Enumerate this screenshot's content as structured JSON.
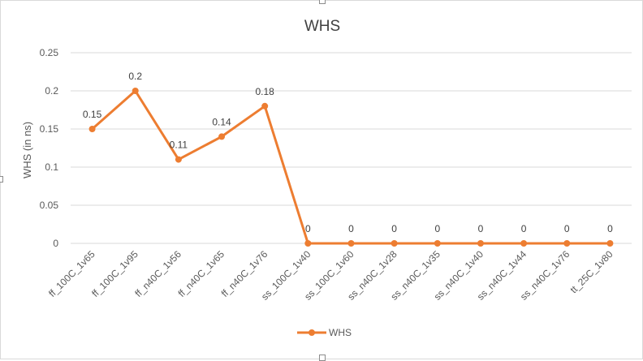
{
  "chart_data": {
    "type": "line",
    "title": "WHS",
    "xlabel": "",
    "ylabel": "WHS (in ns)",
    "categories": [
      "ff_100C_1v65",
      "ff_100C_1v95",
      "ff_n40C_1v56",
      "ff_n40C_1v65",
      "ff_n40C_1v76",
      "ss_100C_1v40",
      "ss_100C_1v60",
      "ss_n40C_1v28",
      "ss_n40C_1v35",
      "ss_n40C_1v40",
      "ss_n40C_1v44",
      "ss_n40C_1v76",
      "tt_25C_1v80"
    ],
    "series": [
      {
        "name": "WHS",
        "values": [
          0.15,
          0.2,
          0.11,
          0.14,
          0.18,
          0,
          0,
          0,
          0,
          0,
          0,
          0,
          0
        ],
        "color": "#ed7d31"
      }
    ],
    "data_labels": [
      "0.15",
      "0.2",
      "0.11",
      "0.14",
      "0.18",
      "0",
      "0",
      "0",
      "0",
      "0",
      "0",
      "0",
      "0"
    ],
    "y_ticks": [
      "0",
      "0.05",
      "0.1",
      "0.15",
      "0.2",
      "0.25"
    ],
    "y_tick_values": [
      0,
      0.05,
      0.1,
      0.15,
      0.2,
      0.25
    ],
    "ylim": [
      0,
      0.25
    ],
    "grid": true,
    "legend": {
      "position": "bottom",
      "entries": [
        "WHS"
      ]
    },
    "colors": {
      "gridline": "#d9d9d9",
      "text": "#595959",
      "title": "#404040"
    }
  }
}
